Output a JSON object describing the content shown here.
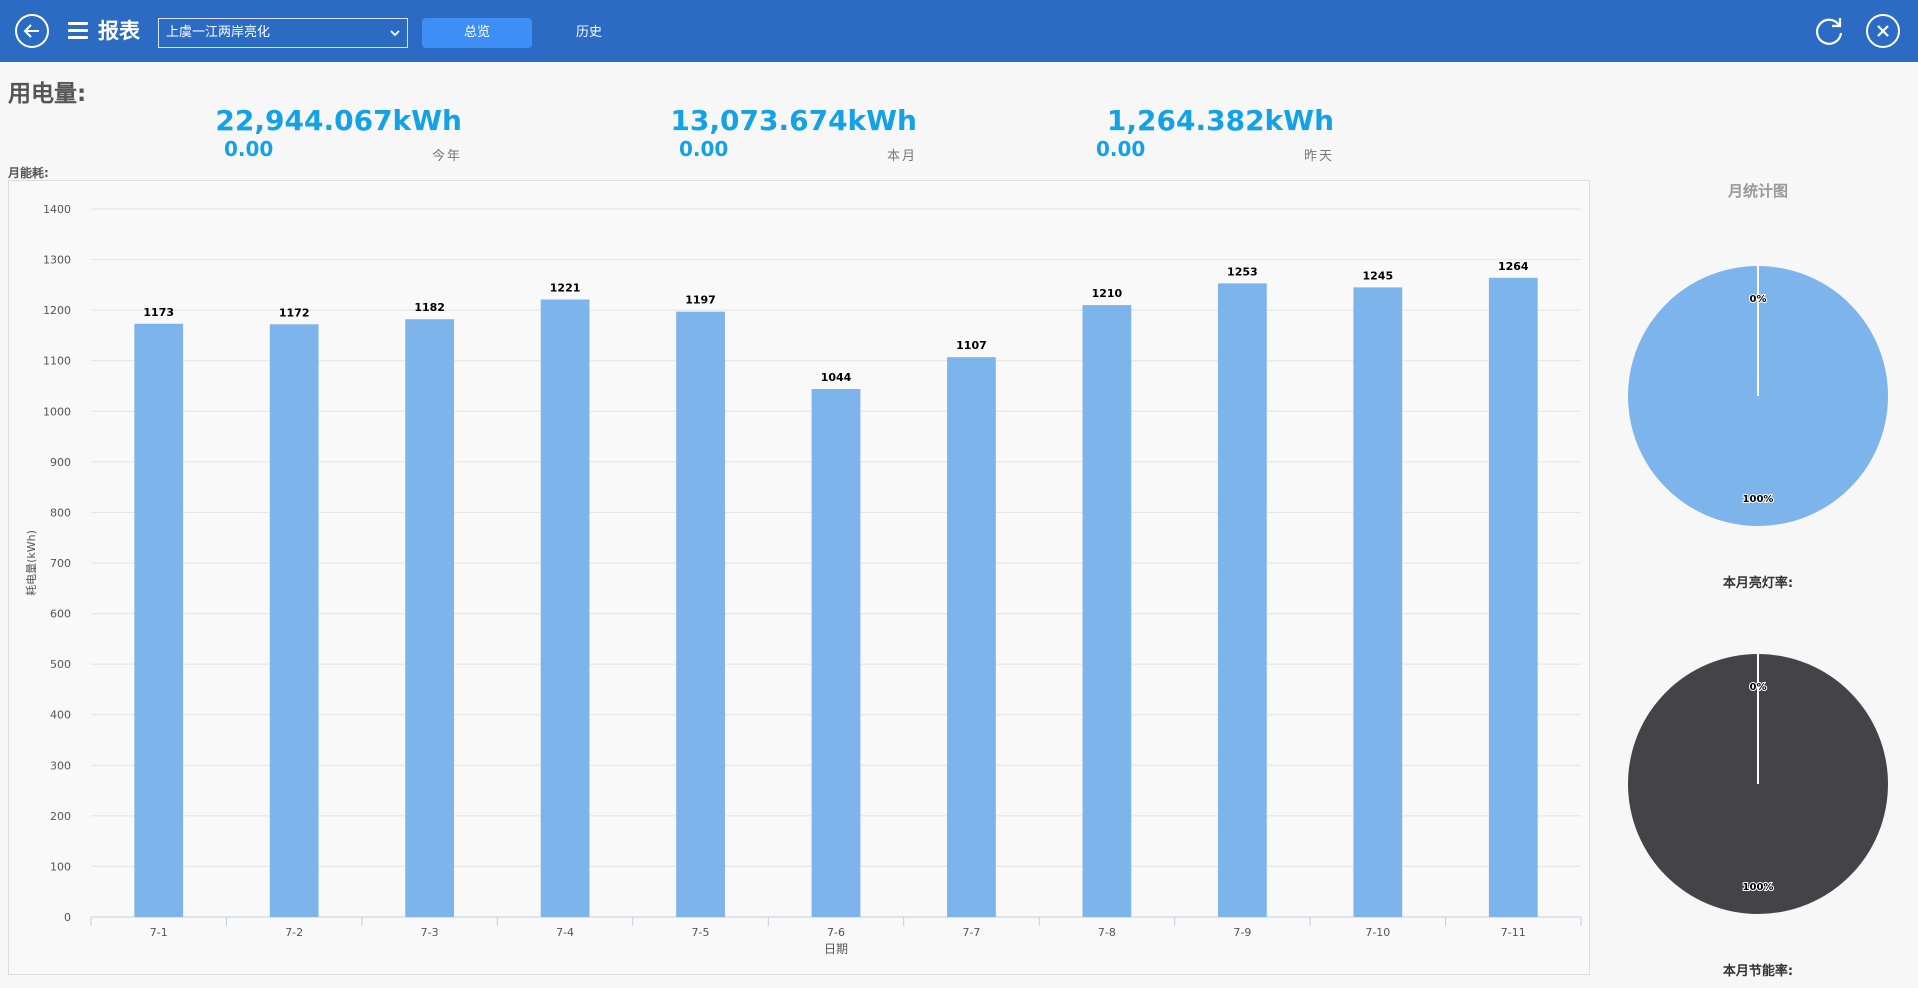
{
  "header": {
    "back_icon": "arrow-left-circle-icon",
    "menu_icon": "hamburger-icon",
    "title": "报表",
    "site_select_value": "上虞一江两岸亮化",
    "tabs": [
      {
        "label": "总览",
        "active": true
      },
      {
        "label": "历史",
        "active": false
      }
    ],
    "refresh_icon": "refresh-icon",
    "close_icon": "close-circle-icon",
    "bar_color": "#2c6bc4"
  },
  "summary": {
    "title": "用电量:",
    "stats": [
      {
        "value": "22,944.067kWh",
        "sub": "0.00",
        "label": "今年"
      },
      {
        "value": "13,073.674kWh",
        "sub": "0.00",
        "label": "本月"
      },
      {
        "value": "1,264.382kWh",
        "sub": "0.00",
        "label": "昨天"
      }
    ],
    "accent": "#13a2e6"
  },
  "chart_section_label": "月能耗:",
  "chart_data": [
    {
      "type": "bar",
      "categories": [
        "7-1",
        "7-2",
        "7-3",
        "7-4",
        "7-5",
        "7-6",
        "7-7",
        "7-8",
        "7-9",
        "7-10",
        "7-11"
      ],
      "values": [
        1173,
        1172,
        1182,
        1221,
        1197,
        1044,
        1107,
        1210,
        1253,
        1245,
        1264
      ],
      "xlabel": "日期",
      "ylabel": "耗电量(kWh)",
      "ylim": [
        0,
        1400
      ],
      "yticks": [
        0,
        100,
        200,
        300,
        400,
        500,
        600,
        700,
        800,
        900,
        1000,
        1100,
        1200,
        1300,
        1400
      ],
      "grid": true,
      "data_labels": true,
      "color": "#7cb4eb"
    },
    {
      "type": "pie",
      "title": "月统计图",
      "labels": [
        "0%",
        "100%"
      ],
      "values": [
        0,
        100
      ],
      "color": "#7cb4eb",
      "caption": "本月亮灯率:"
    },
    {
      "type": "pie",
      "labels": [
        "0%",
        "100%"
      ],
      "values": [
        0,
        100
      ],
      "color": "#434348",
      "caption": "本月节能率:"
    }
  ]
}
